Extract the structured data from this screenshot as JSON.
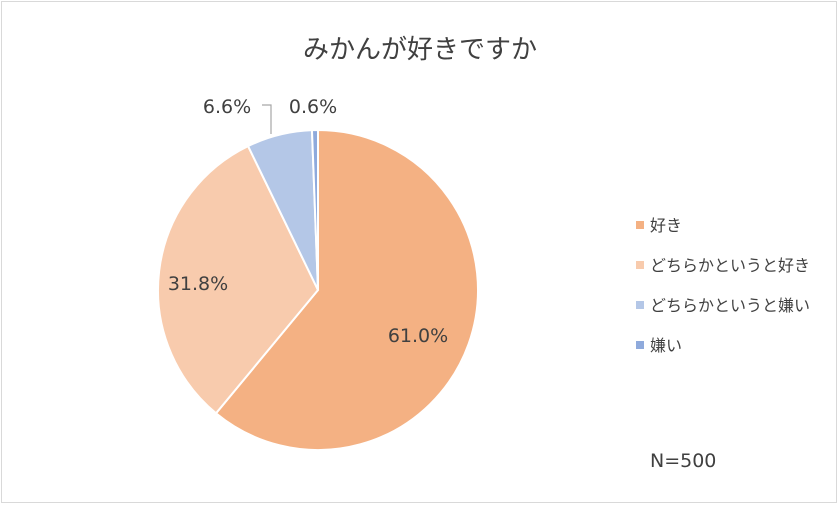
{
  "chart_data": {
    "type": "pie",
    "title": "みかんが好きですか",
    "categories": [
      "好き",
      "どちらかというと好き",
      "どちらかというと嫌い",
      "嫌い"
    ],
    "values": [
      61.0,
      31.8,
      6.6,
      0.6
    ],
    "data_labels": [
      "61.0%",
      "31.8%",
      "6.6%",
      "0.6%"
    ],
    "colors": [
      "#F4B183",
      "#F8CBAD",
      "#B4C7E7",
      "#8FAADC"
    ],
    "start_angle_deg": 0,
    "direction": "clockwise",
    "legend_position": "right",
    "note": "N=500"
  }
}
